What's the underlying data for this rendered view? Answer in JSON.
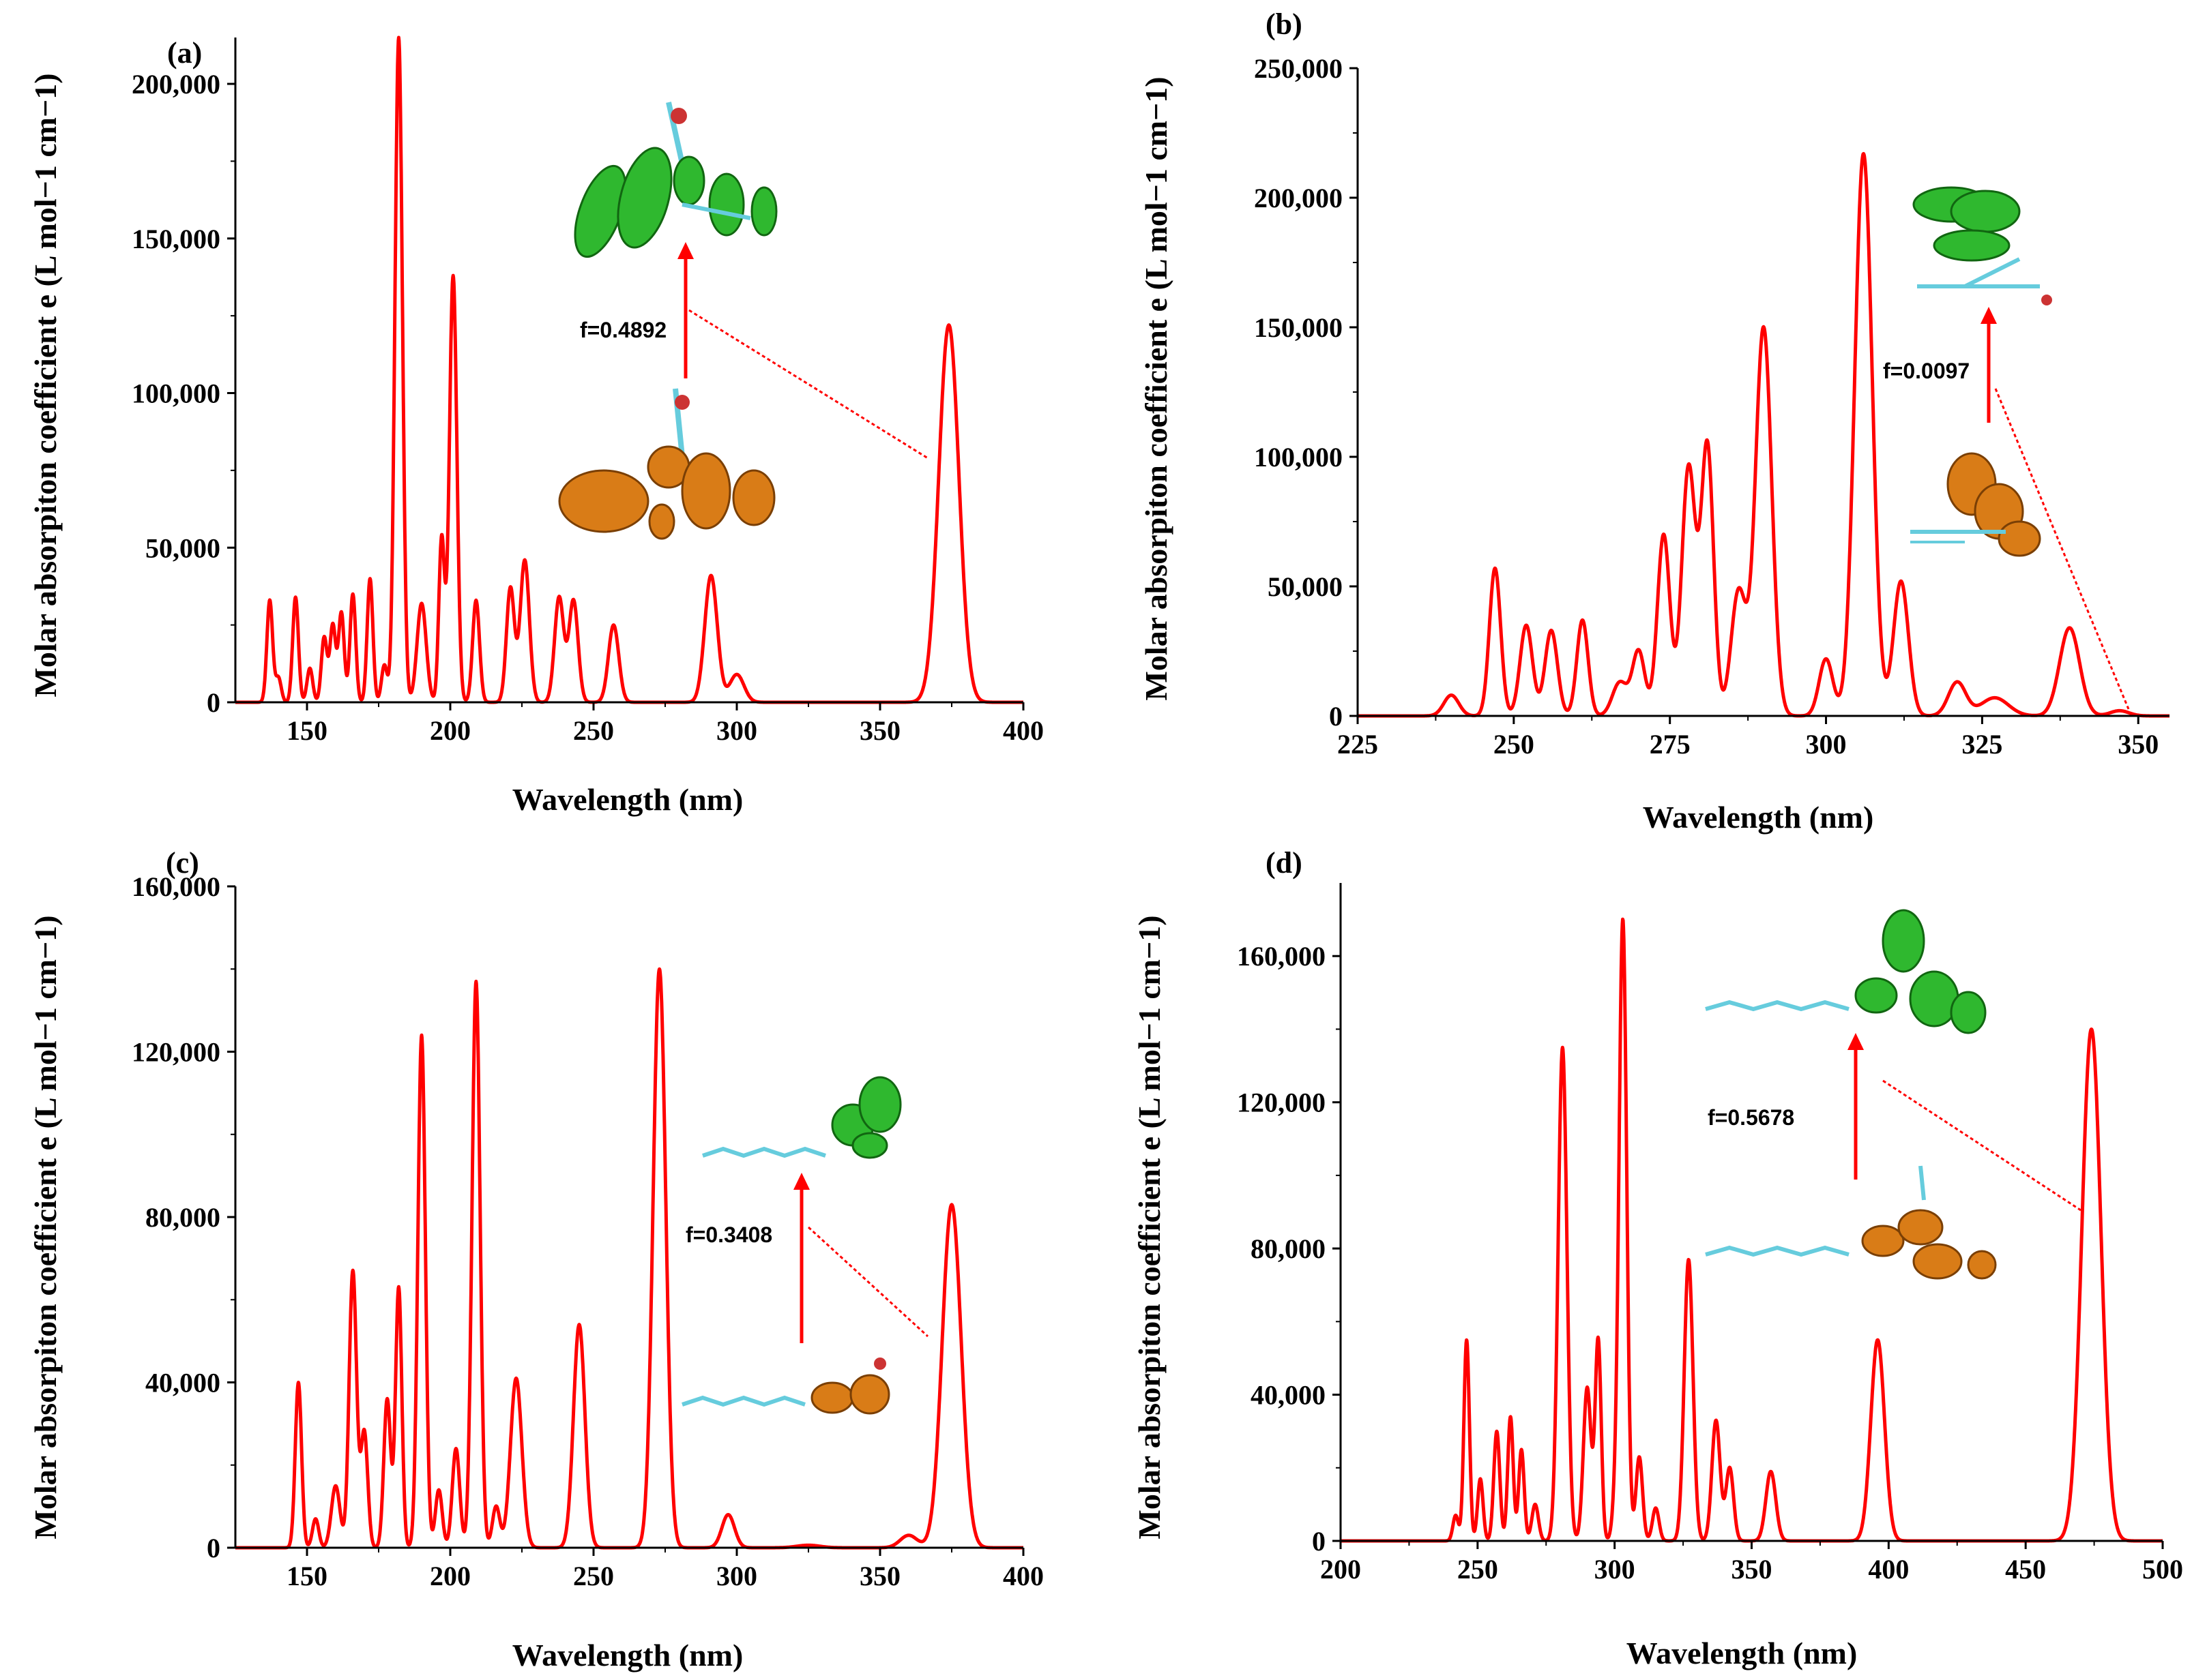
{
  "figure": {
    "background": "#ffffff",
    "curve_color": "#ff0000"
  },
  "chart_data": [
    {
      "type": "line",
      "panel": "(a)",
      "xlabel": "Wavelength (nm)",
      "ylabel": "Molar absorpiton coefficient e (L mol−1 cm−1)",
      "xlim": [
        125,
        400
      ],
      "ylim": [
        0,
        215000
      ],
      "xticks": [
        150,
        200,
        250,
        300,
        350,
        400
      ],
      "yticks": [
        0,
        50000,
        100000,
        150000,
        200000
      ],
      "ytick_labels": [
        "0",
        "50,000",
        "100,000",
        "150,000",
        "200,000"
      ],
      "annotation": {
        "text": "f=0.4892",
        "x": 285
      },
      "peaks": [
        [
          137,
          33000,
          1.0
        ],
        [
          140,
          8000,
          1.0
        ],
        [
          146,
          34000,
          1.0
        ],
        [
          151,
          11000,
          1.0
        ],
        [
          156,
          21000,
          1.0
        ],
        [
          159,
          25000,
          1.0
        ],
        [
          162,
          29000,
          1.0
        ],
        [
          166,
          35000,
          1.0
        ],
        [
          172,
          40000,
          1.0
        ],
        [
          177,
          12000,
          1.0
        ],
        [
          182,
          215000,
          1.3
        ],
        [
          190,
          32000,
          1.6
        ],
        [
          197,
          53000,
          1.0
        ],
        [
          201,
          138000,
          1.3
        ],
        [
          209,
          33000,
          1.2
        ],
        [
          221,
          37000,
          1.4
        ],
        [
          226,
          46000,
          1.6
        ],
        [
          238,
          34000,
          1.6
        ],
        [
          243,
          33000,
          1.6
        ],
        [
          257,
          25000,
          1.8
        ],
        [
          291,
          41000,
          2.2
        ],
        [
          300,
          9000,
          2.5
        ],
        [
          374,
          122000,
          3.5
        ]
      ]
    },
    {
      "type": "line",
      "panel": "(b)",
      "xlabel": "Wavelength (nm)",
      "ylabel": "Molar absorpiton coefficient e (L mol−1 cm−1)",
      "xlim": [
        225,
        355
      ],
      "ylim": [
        0,
        250000
      ],
      "xticks": [
        225,
        250,
        275,
        300,
        325,
        350
      ],
      "yticks": [
        0,
        50000,
        100000,
        150000,
        200000,
        250000
      ],
      "ytick_labels": [
        "0",
        "50,000",
        "100,000",
        "150,000",
        "200,000",
        "250,000"
      ],
      "annotation": {
        "text": "f=0.0097",
        "x": 327
      },
      "peaks": [
        [
          240,
          8000,
          1.2
        ],
        [
          247,
          57000,
          0.9
        ],
        [
          252,
          35000,
          1.0
        ],
        [
          256,
          33000,
          1.0
        ],
        [
          261,
          37000,
          0.9
        ],
        [
          267,
          13000,
          1.2
        ],
        [
          270,
          25000,
          1.0
        ],
        [
          274,
          70000,
          1.0
        ],
        [
          278,
          96000,
          1.1
        ],
        [
          281,
          104000,
          1.0
        ],
        [
          286,
          48000,
          1.2
        ],
        [
          290,
          150000,
          1.3
        ],
        [
          300,
          22000,
          1.1
        ],
        [
          306,
          217000,
          1.4
        ],
        [
          312,
          52000,
          1.2
        ],
        [
          321,
          13000,
          1.4
        ],
        [
          327,
          7000,
          2.2
        ],
        [
          339,
          34000,
          1.6
        ],
        [
          347,
          2000,
          1.5
        ]
      ]
    },
    {
      "type": "line",
      "panel": "(c)",
      "xlabel": "Wavelength (nm)",
      "ylabel": "Molar absorpiton coefficient e (L mol−1 cm−1)",
      "xlim": [
        125,
        400
      ],
      "ylim": [
        0,
        160000
      ],
      "xticks": [
        150,
        200,
        250,
        300,
        350,
        400
      ],
      "yticks": [
        0,
        40000,
        80000,
        120000,
        160000
      ],
      "ytick_labels": [
        "0",
        "40,000",
        "80,000",
        "120,000",
        "160,000"
      ],
      "annotation": {
        "text": "f=0.3408",
        "x": 325
      },
      "peaks": [
        [
          147,
          40000,
          1.1
        ],
        [
          153,
          7000,
          1.1
        ],
        [
          160,
          15000,
          1.5
        ],
        [
          166,
          67000,
          1.3
        ],
        [
          170,
          28000,
          1.2
        ],
        [
          178,
          36000,
          1.2
        ],
        [
          182,
          63000,
          1.1
        ],
        [
          190,
          124000,
          1.3
        ],
        [
          196,
          14000,
          1.2
        ],
        [
          202,
          24000,
          1.3
        ],
        [
          209,
          137000,
          1.4
        ],
        [
          216,
          10000,
          1.3
        ],
        [
          223,
          41000,
          2.0
        ],
        [
          245,
          54000,
          2.0
        ],
        [
          273,
          140000,
          2.2
        ],
        [
          297,
          8000,
          2.2
        ],
        [
          325,
          600,
          4.0
        ],
        [
          360,
          3000,
          3.0
        ],
        [
          375,
          83000,
          3.3
        ]
      ]
    },
    {
      "type": "line",
      "panel": "(d)",
      "xlabel": "Wavelength (nm)",
      "ylabel": "Molar absorpiton coefficient e (L mol−1 cm−1)",
      "xlim": [
        200,
        500
      ],
      "ylim": [
        0,
        180000
      ],
      "xticks": [
        200,
        250,
        300,
        350,
        400,
        450,
        500
      ],
      "yticks": [
        0,
        40000,
        80000,
        120000,
        160000
      ],
      "ytick_labels": [
        "0",
        "40,000",
        "80,000",
        "120,000",
        "160,000"
      ],
      "annotation": {
        "text": "f=0.5678",
        "x": 388
      },
      "peaks": [
        [
          242,
          7000,
          1.0
        ],
        [
          246,
          55000,
          1.0
        ],
        [
          251,
          17000,
          1.0
        ],
        [
          257,
          30000,
          1.1
        ],
        [
          262,
          34000,
          1.0
        ],
        [
          266,
          25000,
          1.0
        ],
        [
          271,
          10000,
          1.2
        ],
        [
          281,
          135000,
          1.6
        ],
        [
          290,
          42000,
          1.4
        ],
        [
          294,
          55000,
          1.1
        ],
        [
          300,
          6000,
          1.1
        ],
        [
          303,
          170000,
          1.4
        ],
        [
          309,
          23000,
          1.2
        ],
        [
          315,
          9000,
          1.2
        ],
        [
          327,
          77000,
          1.6
        ],
        [
          337,
          33000,
          1.5
        ],
        [
          342,
          20000,
          1.4
        ],
        [
          357,
          19000,
          1.8
        ],
        [
          396,
          55000,
          2.5
        ],
        [
          474,
          140000,
          3.5
        ]
      ]
    }
  ]
}
